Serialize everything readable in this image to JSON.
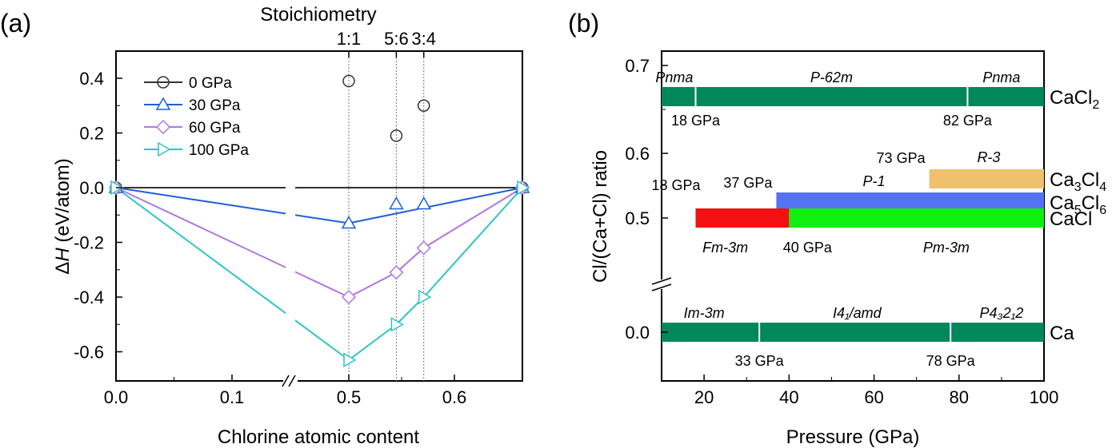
{
  "chart_data": [
    {
      "type": "line",
      "panel_label": "(a)",
      "title": "Stoichiometry",
      "xlabel": "Chlorine atomic content",
      "ylabel_italic": "H",
      "ylabel_prefix": "Δ",
      "ylabel_suffix": " (eV/atom)",
      "ylim": [
        -0.72,
        0.52
      ],
      "x_ticks": [
        "0.0",
        "0.1",
        "0.5",
        "0.6"
      ],
      "y_ticks": [
        "0.4",
        "0.2",
        "0.0",
        "-0.2",
        "-0.4",
        "-0.6"
      ],
      "top_ticks": [
        "1:1",
        "5:6",
        "3:4"
      ],
      "legend_position": "top-left",
      "series": [
        {
          "name": "0 GPa",
          "color": "#333333",
          "marker": "circle",
          "line": [
            [
              0.0,
              0.0
            ],
            [
              0.667,
              0.0
            ]
          ],
          "points": [
            [
              0.0,
              0.0
            ],
            [
              0.5,
              0.39
            ],
            [
              0.545,
              0.19
            ],
            [
              0.571,
              0.3
            ],
            [
              0.667,
              0.0
            ]
          ]
        },
        {
          "name": "30 GPa",
          "color": "#1f5fd6",
          "marker": "triangle-up",
          "line": [
            [
              0.0,
              0.0
            ],
            [
              0.5,
              -0.13
            ],
            [
              0.667,
              0.0
            ]
          ],
          "points": [
            [
              0.0,
              0.0
            ],
            [
              0.5,
              -0.13
            ],
            [
              0.545,
              -0.06
            ],
            [
              0.571,
              -0.06
            ],
            [
              0.667,
              0.0
            ]
          ]
        },
        {
          "name": "60 GPa",
          "color": "#b077e0",
          "marker": "diamond",
          "line": [
            [
              0.0,
              0.0
            ],
            [
              0.5,
              -0.4
            ],
            [
              0.545,
              -0.31
            ],
            [
              0.571,
              -0.22
            ],
            [
              0.667,
              0.0
            ]
          ],
          "points": [
            [
              0.0,
              0.0
            ],
            [
              0.5,
              -0.4
            ],
            [
              0.545,
              -0.31
            ],
            [
              0.571,
              -0.22
            ],
            [
              0.667,
              0.0
            ]
          ]
        },
        {
          "name": "100 GPa",
          "color": "#2ec4c4",
          "marker": "triangle-right",
          "line": [
            [
              0.0,
              0.0
            ],
            [
              0.5,
              -0.63
            ],
            [
              0.545,
              -0.5
            ],
            [
              0.571,
              -0.4
            ],
            [
              0.667,
              0.0
            ]
          ],
          "points": [
            [
              0.0,
              0.0
            ],
            [
              0.5,
              -0.63
            ],
            [
              0.545,
              -0.5
            ],
            [
              0.571,
              -0.4
            ],
            [
              0.667,
              0.0
            ]
          ]
        }
      ]
    },
    {
      "type": "bar",
      "orientation": "horizontal",
      "panel_label": "(b)",
      "xlabel": "Pressure (GPa)",
      "ylabel": "Cl/(Ca+Cl) ratio",
      "xlim": [
        10,
        100
      ],
      "x_ticks": [
        20,
        40,
        60,
        80,
        100
      ],
      "y_ticks": [
        "0.7",
        "0.6",
        "0.5",
        "0.0"
      ],
      "rows": [
        {
          "compound": "CaCl",
          "sub": "2",
          "after": "",
          "ratio": 0.667,
          "segments": [
            {
              "from": 10,
              "to": 100,
              "color": "#00875a"
            }
          ],
          "boundaries": [
            18,
            82
          ],
          "phases": [
            {
              "name": "Pnma",
              "at": 13
            },
            {
              "name": "P-62m",
              "at": 50
            },
            {
              "name": "Pnma",
              "at": 90
            }
          ],
          "pressure_labels": [
            {
              "text": "18 GPa",
              "at": 18
            },
            {
              "text": "82 GPa",
              "at": 82
            }
          ]
        },
        {
          "compound": "Ca",
          "sub": "3",
          "after": "Cl",
          "sub2": "4",
          "ratio": 0.571,
          "segments": [
            {
              "from": 73,
              "to": 100,
              "color": "#efc16e"
            }
          ],
          "boundaries": [],
          "phases": [
            {
              "name": "R-3",
              "at": 87
            }
          ],
          "pressure_labels": [
            {
              "text": "73 GPa",
              "at": 73
            }
          ]
        },
        {
          "compound": "Ca",
          "sub": "5",
          "after": "Cl",
          "sub2": "6",
          "ratio": 0.545,
          "segments": [
            {
              "from": 37,
              "to": 100,
              "color": "#5572f2"
            }
          ],
          "boundaries": [],
          "phases": [
            {
              "name": "P-1",
              "at": 60
            }
          ],
          "pressure_labels": [
            {
              "text": "37 GPa",
              "at": 37
            }
          ]
        },
        {
          "compound": "CaCl",
          "sub": "",
          "after": "",
          "ratio": 0.5,
          "segments": [
            {
              "from": 18,
              "to": 40,
              "color": "#f21010"
            },
            {
              "from": 40,
              "to": 100,
              "color": "#10f010"
            }
          ],
          "boundaries": [],
          "phases": [
            {
              "name": "Fm-3m",
              "at": 25
            },
            {
              "name": "Pm-3m",
              "at": 77
            }
          ],
          "pressure_labels": [
            {
              "text": "18 GPa",
              "at": 18
            },
            {
              "text": "40 GPa",
              "at": 40
            }
          ]
        },
        {
          "compound": "Ca",
          "sub": "",
          "after": "",
          "ratio": 0.0,
          "segments": [
            {
              "from": 10,
              "to": 100,
              "color": "#00875a"
            }
          ],
          "boundaries": [
            33,
            78
          ],
          "phases": [
            {
              "name": "Im-3m",
              "at": 20
            },
            {
              "name": "I4₁/amd",
              "at": 56
            },
            {
              "name": "P4₃2₁2",
              "at": 90
            }
          ],
          "pressure_labels": [
            {
              "text": "33 GPa",
              "at": 33
            },
            {
              "text": "78 GPa",
              "at": 78
            }
          ]
        }
      ]
    }
  ]
}
